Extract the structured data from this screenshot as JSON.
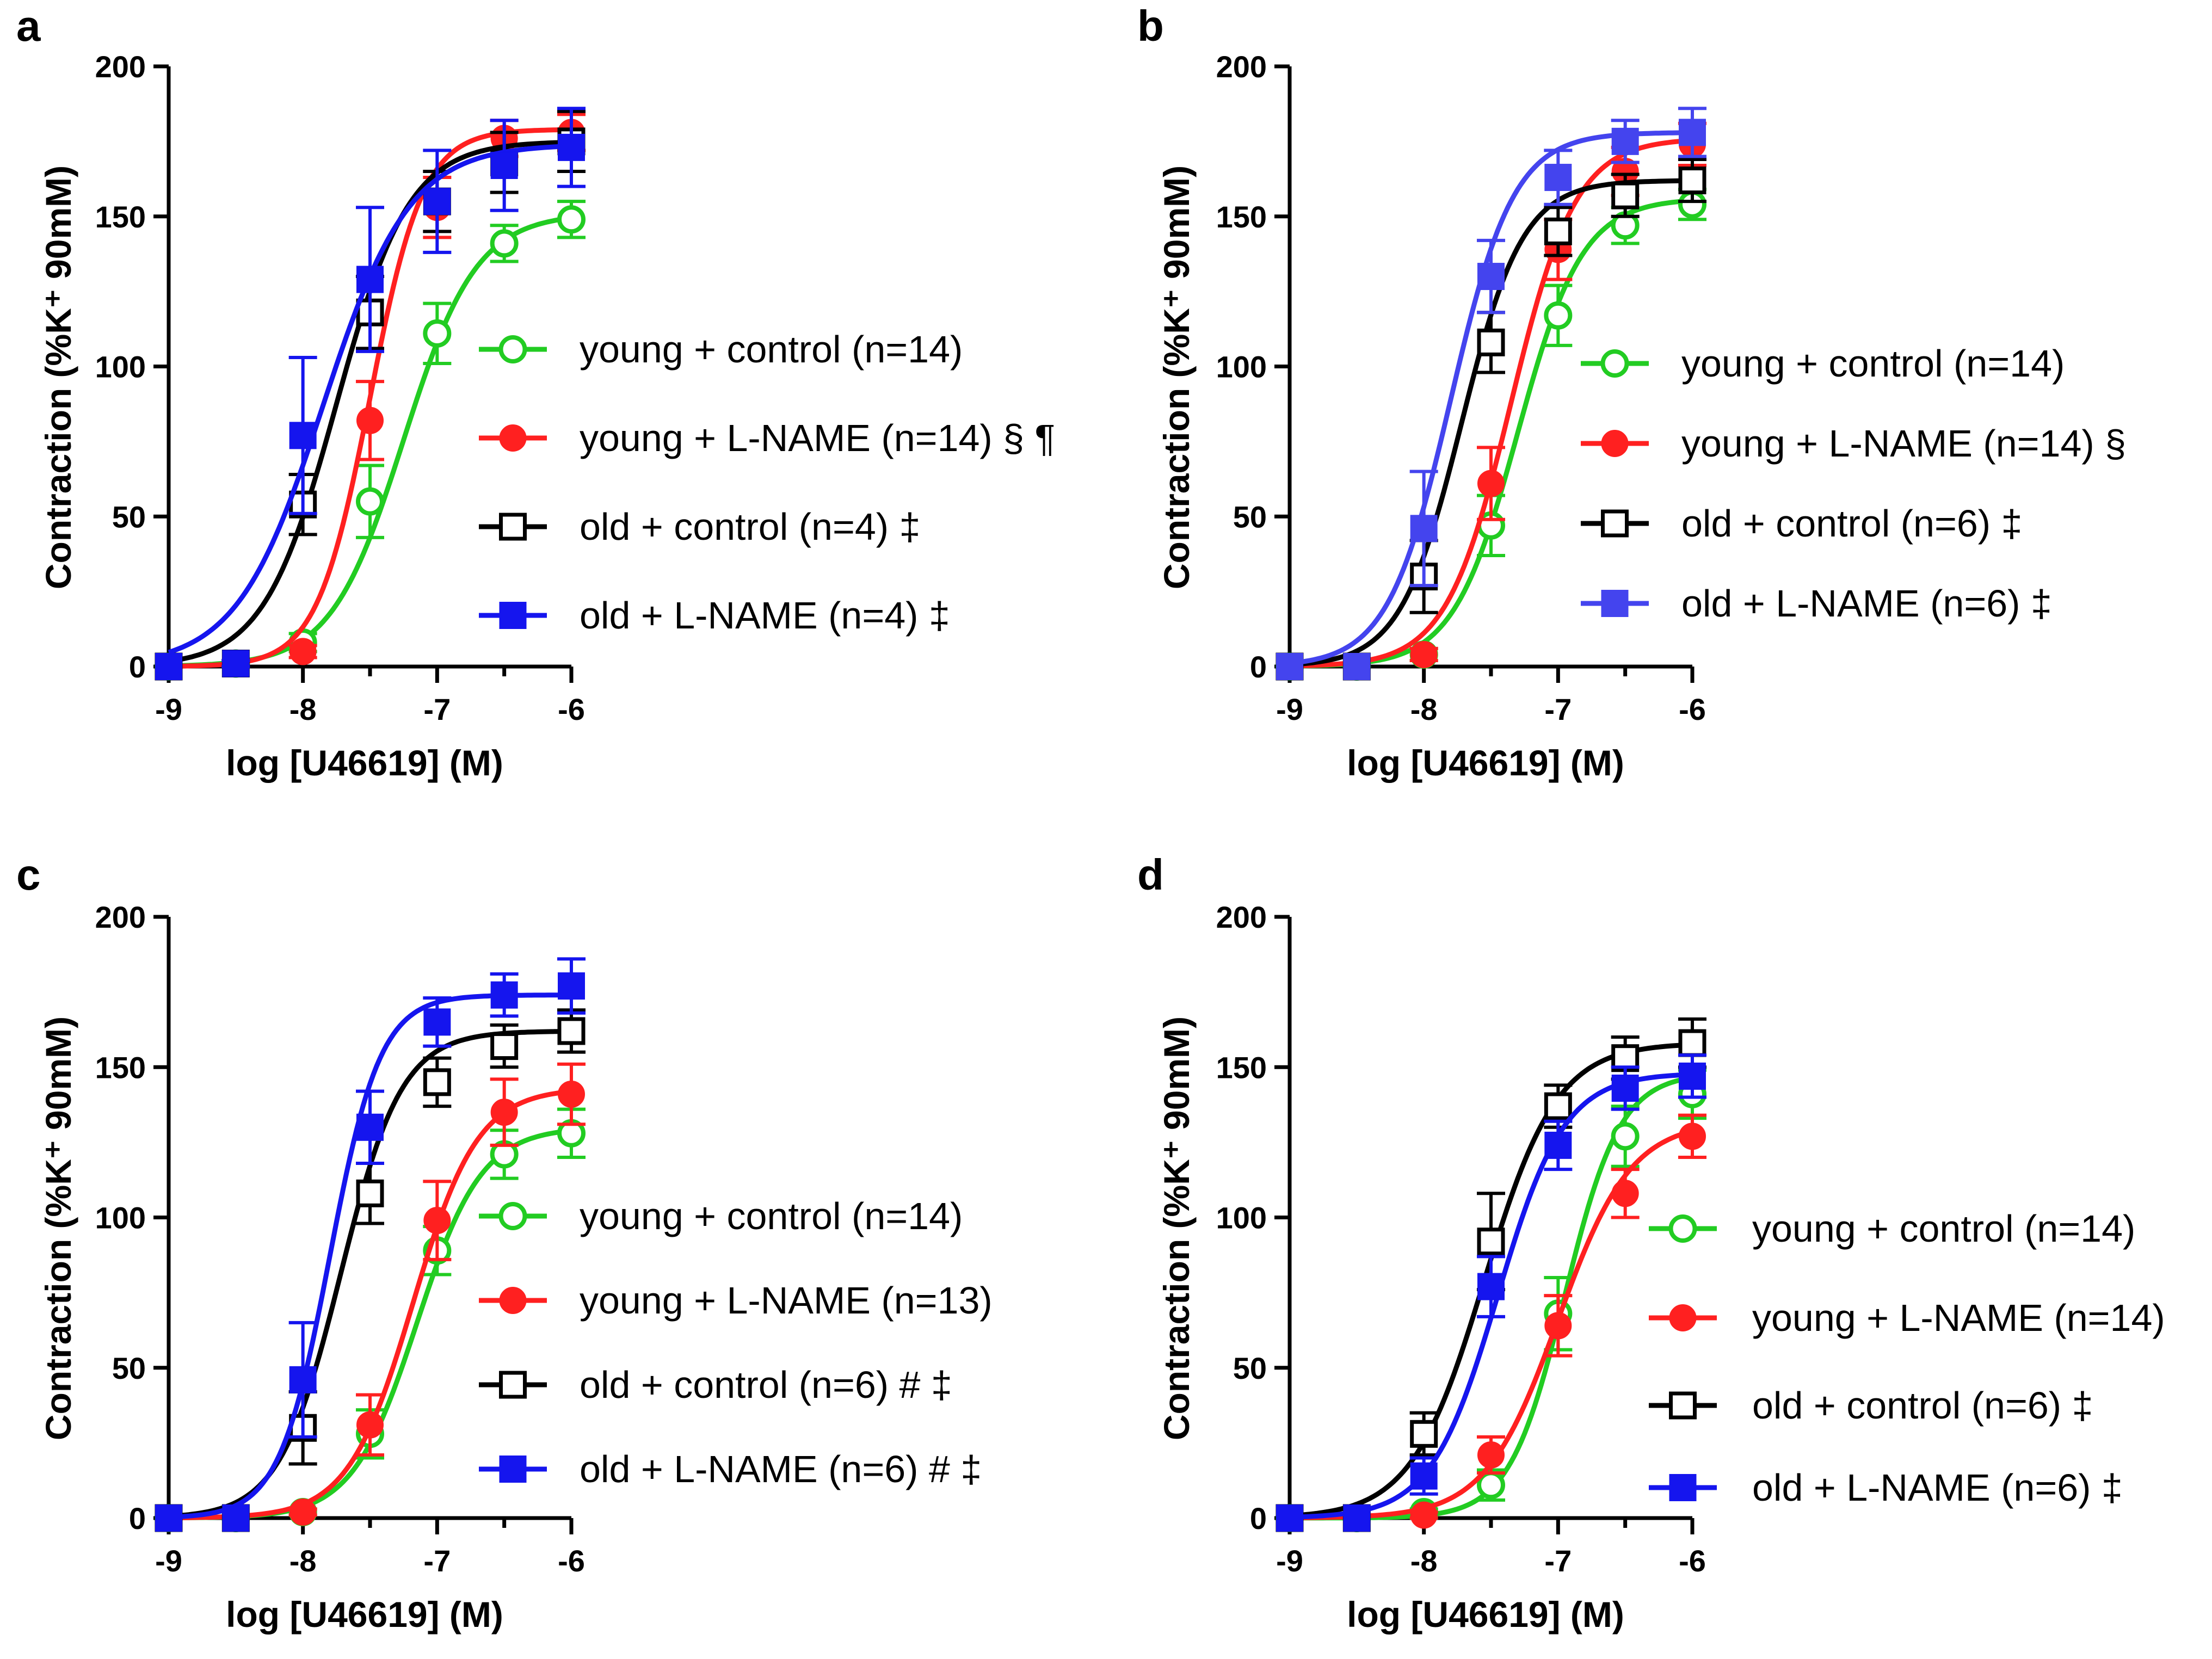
{
  "chart_data": [
    {
      "panel": "a",
      "type": "line",
      "xlabel": "log [U46619] (M)",
      "ylabel": "Contraction (%K⁺ 90mM)",
      "xlim": [
        -9,
        -6
      ],
      "ylim": [
        0,
        200
      ],
      "xticks": [
        "-9",
        "-8",
        "-7",
        "-6"
      ],
      "yticks": [
        "0",
        "50",
        "100",
        "150",
        "200"
      ],
      "x": [
        -9,
        -8.5,
        -8,
        -7.5,
        -7,
        -6.5,
        -6
      ],
      "series": [
        {
          "name": "young + control (n=14)",
          "color": "#22cc22",
          "marker": "open-circle",
          "values": [
            0,
            1,
            8,
            55,
            111,
            141,
            149
          ],
          "err": [
            0,
            1,
            3,
            12,
            10,
            6,
            6
          ],
          "fit": {
            "bottom": 0,
            "top": 151,
            "logEC50": -7.25,
            "hill": 1.6
          }
        },
        {
          "name": "young + L-NAME (n=14) § ¶",
          "color": "#ff2020",
          "marker": "filled-circle",
          "values": [
            0,
            1,
            5,
            82,
            153,
            176,
            178
          ],
          "err": [
            0,
            1,
            2,
            13,
            10,
            6,
            6
          ],
          "fit": {
            "bottom": 0,
            "top": 179,
            "logEC50": -7.5,
            "hill": 2.2
          }
        },
        {
          "name": "old + control (n=4) ‡",
          "color": "#000000",
          "marker": "open-square",
          "values": [
            0,
            1,
            54,
            118,
            155,
            168,
            175
          ],
          "err": [
            0,
            1,
            10,
            12,
            10,
            10,
            10
          ],
          "fit": {
            "bottom": 0,
            "top": 175,
            "logEC50": -7.75,
            "hill": 1.6
          }
        },
        {
          "name": "old + L-NAME (n=4) ‡",
          "color": "#1515ee",
          "marker": "filled-square",
          "values": [
            0,
            1,
            77,
            129,
            155,
            167,
            173
          ],
          "err": [
            0,
            1,
            26,
            24,
            17,
            15,
            13
          ],
          "fit": {
            "bottom": 0,
            "top": 174,
            "logEC50": -7.85,
            "hill": 1.35
          }
        }
      ]
    },
    {
      "panel": "b",
      "type": "line",
      "xlabel": "log [U46619] (M)",
      "ylabel": "Contraction (%K⁺ 90mM)",
      "xlim": [
        -9,
        -6
      ],
      "ylim": [
        0,
        200
      ],
      "xticks": [
        "-9",
        "-8",
        "-7",
        "-6"
      ],
      "yticks": [
        "0",
        "50",
        "100",
        "150",
        "200"
      ],
      "x": [
        -9,
        -8.5,
        -8,
        -7.5,
        -7,
        -6.5,
        -6
      ],
      "series": [
        {
          "name": "young + control (n=14)",
          "color": "#22cc22",
          "marker": "open-circle",
          "values": [
            0,
            0,
            4,
            47,
            117,
            147,
            154
          ],
          "err": [
            0,
            0,
            2,
            10,
            10,
            6,
            5
          ],
          "fit": {
            "bottom": 0,
            "top": 156,
            "logEC50": -7.3,
            "hill": 1.8
          }
        },
        {
          "name": "young + L-NAME (n=14) §",
          "color": "#ff2020",
          "marker": "filled-circle",
          "values": [
            0,
            0,
            4,
            61,
            139,
            165,
            174
          ],
          "err": [
            0,
            0,
            2,
            12,
            10,
            8,
            7
          ],
          "fit": {
            "bottom": 0,
            "top": 176,
            "logEC50": -7.35,
            "hill": 1.8
          }
        },
        {
          "name": "old + control (n=6) ‡",
          "color": "#000000",
          "marker": "open-square",
          "values": [
            0,
            0,
            30,
            108,
            145,
            157,
            162
          ],
          "err": [
            0,
            0,
            12,
            10,
            8,
            7,
            7
          ],
          "fit": {
            "bottom": 0,
            "top": 162,
            "logEC50": -7.72,
            "hill": 1.9
          }
        },
        {
          "name": "old + L-NAME (n=6) ‡",
          "color": "#4444ee",
          "marker": "filled-square",
          "values": [
            0,
            0,
            46,
            130,
            163,
            175,
            178
          ],
          "err": [
            0,
            0,
            19,
            12,
            9,
            7,
            8
          ],
          "fit": {
            "bottom": 0,
            "top": 178,
            "logEC50": -7.8,
            "hill": 1.85
          }
        }
      ]
    },
    {
      "panel": "c",
      "type": "line",
      "xlabel": "log [U46619] (M)",
      "ylabel": "Contraction (%K⁺ 90mM)",
      "xlim": [
        -9,
        -6
      ],
      "ylim": [
        0,
        200
      ],
      "xticks": [
        "-9",
        "-8",
        "-7",
        "-6"
      ],
      "yticks": [
        "0",
        "50",
        "100",
        "150",
        "200"
      ],
      "x": [
        -9,
        -8.5,
        -8,
        -7.5,
        -7,
        -6.5,
        -6
      ],
      "series": [
        {
          "name": "young + control (n=14)",
          "color": "#22cc22",
          "marker": "open-circle",
          "values": [
            0,
            0,
            2,
            28,
            89,
            121,
            128
          ],
          "err": [
            0,
            0,
            1,
            8,
            8,
            8,
            8
          ],
          "fit": {
            "bottom": 0,
            "top": 130,
            "logEC50": -7.15,
            "hill": 1.8
          }
        },
        {
          "name": "young + L-NAME (n=13)",
          "color": "#ff2020",
          "marker": "filled-circle",
          "values": [
            0,
            0,
            2,
            31,
            99,
            135,
            141
          ],
          "err": [
            0,
            0,
            1,
            10,
            13,
            11,
            10
          ],
          "fit": {
            "bottom": 0,
            "top": 143,
            "logEC50": -7.18,
            "hill": 1.8
          }
        },
        {
          "name": "old + control (n=6) # ‡",
          "color": "#000000",
          "marker": "open-square",
          "values": [
            0,
            0,
            30,
            108,
            145,
            157,
            162
          ],
          "err": [
            0,
            0,
            12,
            10,
            8,
            7,
            7
          ],
          "fit": {
            "bottom": 0,
            "top": 162,
            "logEC50": -7.72,
            "hill": 1.9
          }
        },
        {
          "name": "old + L-NAME (n=6) # ‡",
          "color": "#1515ee",
          "marker": "filled-square",
          "values": [
            0,
            0,
            46,
            130,
            165,
            174,
            177
          ],
          "err": [
            0,
            0,
            19,
            12,
            8,
            7,
            9
          ],
          "fit": {
            "bottom": 0,
            "top": 174,
            "logEC50": -7.8,
            "hill": 2.3
          }
        }
      ]
    },
    {
      "panel": "d",
      "type": "line",
      "xlabel": "log [U46619] (M)",
      "ylabel": "Contraction (%K⁺ 90mM)",
      "xlim": [
        -9,
        -6
      ],
      "ylim": [
        0,
        200
      ],
      "xticks": [
        "-9",
        "-8",
        "-7",
        "-6"
      ],
      "yticks": [
        "0",
        "50",
        "100",
        "150",
        "200"
      ],
      "x": [
        -9,
        -8.5,
        -8,
        -7.5,
        -7,
        -6.5,
        -6
      ],
      "series": [
        {
          "name": "young + control (n=14)",
          "color": "#22cc22",
          "marker": "open-circle",
          "values": [
            0,
            0,
            2,
            11,
            68,
            127,
            141
          ],
          "err": [
            0,
            0,
            1,
            5,
            12,
            10,
            8
          ],
          "fit": {
            "bottom": 0,
            "top": 148,
            "logEC50": -6.95,
            "hill": 2.1
          }
        },
        {
          "name": "young + L-NAME (n=14)",
          "color": "#ff2020",
          "marker": "filled-circle",
          "values": [
            0,
            0,
            1,
            21,
            64,
            108,
            127
          ],
          "err": [
            0,
            0,
            1,
            6,
            10,
            8,
            7
          ],
          "fit": {
            "bottom": 0,
            "top": 132,
            "logEC50": -7.0,
            "hill": 1.6
          }
        },
        {
          "name": "old + control (n=6) ‡",
          "color": "#000000",
          "marker": "open-square",
          "values": [
            0,
            0,
            28,
            92,
            137,
            153,
            158
          ],
          "err": [
            0,
            0,
            7,
            16,
            7,
            7,
            8
          ],
          "fit": {
            "bottom": 0,
            "top": 158,
            "logEC50": -7.55,
            "hill": 1.6
          }
        },
        {
          "name": "old + L-NAME (n=6) ‡",
          "color": "#1515ee",
          "marker": "filled-square",
          "values": [
            0,
            0,
            14,
            77,
            124,
            143,
            147
          ],
          "err": [
            0,
            0,
            6,
            10,
            8,
            7,
            7
          ],
          "fit": {
            "bottom": 0,
            "top": 148,
            "logEC50": -7.45,
            "hill": 1.75
          }
        }
      ]
    }
  ]
}
